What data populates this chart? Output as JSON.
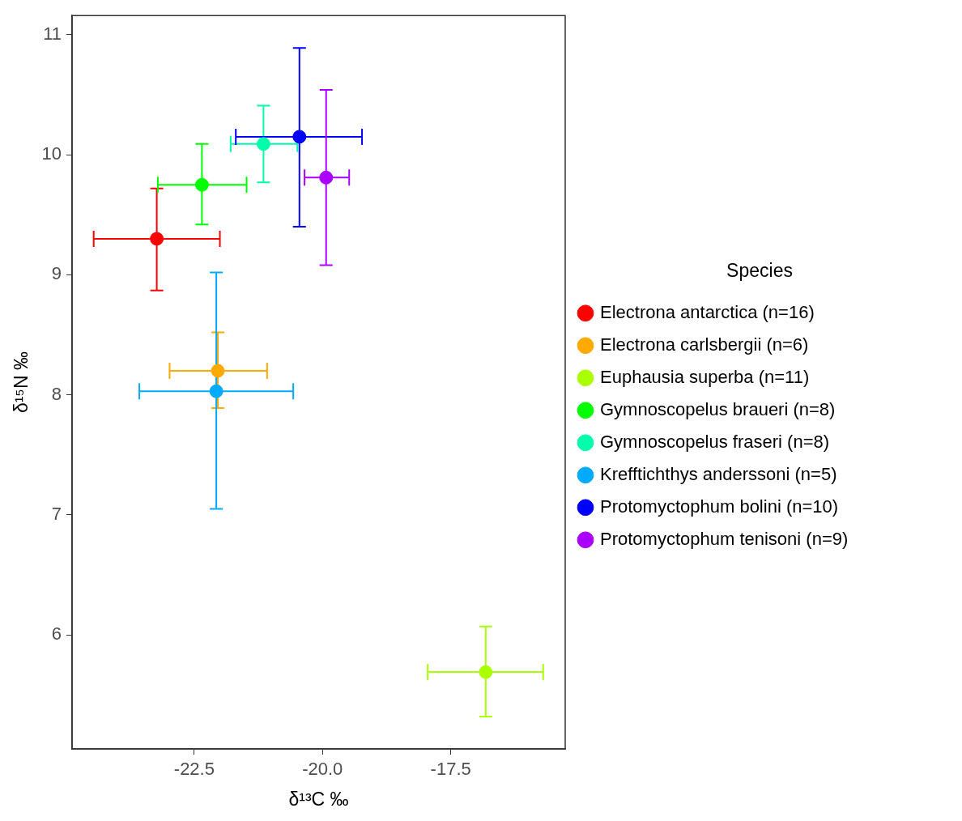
{
  "chart_data": {
    "type": "scatter",
    "xlabel": "δ¹³C ‰",
    "ylabel": "δ¹⁵N ‰",
    "legend_title": "Species",
    "legend": "right",
    "grid": false,
    "marker": "circle",
    "xlim": [
      -24.88,
      -15.27
    ],
    "xticks": [
      {
        "value": -22.5,
        "label": "-22.5"
      },
      {
        "value": -20,
        "label": "-20.0"
      },
      {
        "value": -17.5,
        "label": "-17.5"
      }
    ],
    "ylim": [
      5.05,
      11.16
    ],
    "yticks": [
      6,
      7,
      8,
      9,
      10,
      11
    ],
    "series": [
      {
        "name": "Electrona antarctica (n=16)",
        "color": "#ff0000",
        "x": [
          -23.23
        ],
        "values": [
          9.3
        ],
        "xerrors": [
          [
            -24.46,
            -22.0
          ]
        ],
        "errors": [
          [
            8.87,
            9.72
          ]
        ]
      },
      {
        "name": "Electrona carlsbergii (n=6)",
        "color": "#ffaa00",
        "x": [
          -22.04
        ],
        "values": [
          8.2
        ],
        "xerrors": [
          [
            -22.98,
            -21.08
          ]
        ],
        "errors": [
          [
            7.89,
            8.52
          ]
        ]
      },
      {
        "name": "Euphausia superba (n=11)",
        "color": "#aaff00",
        "x": [
          -16.82
        ],
        "values": [
          5.69
        ],
        "xerrors": [
          [
            -17.95,
            -15.7
          ]
        ],
        "errors": [
          [
            5.32,
            6.07
          ]
        ]
      },
      {
        "name": "Gymnoscopelus braueri (n=8)",
        "color": "#00ff00",
        "x": [
          -22.35
        ],
        "values": [
          9.75
        ],
        "xerrors": [
          [
            -23.21,
            -21.48
          ]
        ],
        "errors": [
          [
            9.42,
            10.09
          ]
        ]
      },
      {
        "name": "Gymnoscopelus fraseri (n=8)",
        "color": "#00ffaa",
        "x": [
          -21.15
        ],
        "values": [
          10.09
        ],
        "xerrors": [
          [
            -21.79,
            -20.49
          ]
        ],
        "errors": [
          [
            9.77,
            10.41
          ]
        ]
      },
      {
        "name": "Krefftichthys anderssoni (n=5)",
        "color": "#00aaff",
        "x": [
          -22.07
        ],
        "values": [
          8.03
        ],
        "xerrors": [
          [
            -23.57,
            -20.57
          ]
        ],
        "errors": [
          [
            7.05,
            9.02
          ]
        ]
      },
      {
        "name": "Protomyctophum bolini (n=10)",
        "color": "#0000ff",
        "x": [
          -20.45
        ],
        "values": [
          10.15
        ],
        "xerrors": [
          [
            -21.69,
            -19.23
          ]
        ],
        "errors": [
          [
            9.4,
            10.89
          ]
        ]
      },
      {
        "name": "Protomyctophum tenisoni (n=9)",
        "color": "#aa00ff",
        "x": [
          -19.93
        ],
        "values": [
          9.81
        ],
        "xerrors": [
          [
            -20.35,
            -19.48
          ]
        ],
        "errors": [
          [
            9.08,
            10.54
          ]
        ]
      }
    ]
  }
}
